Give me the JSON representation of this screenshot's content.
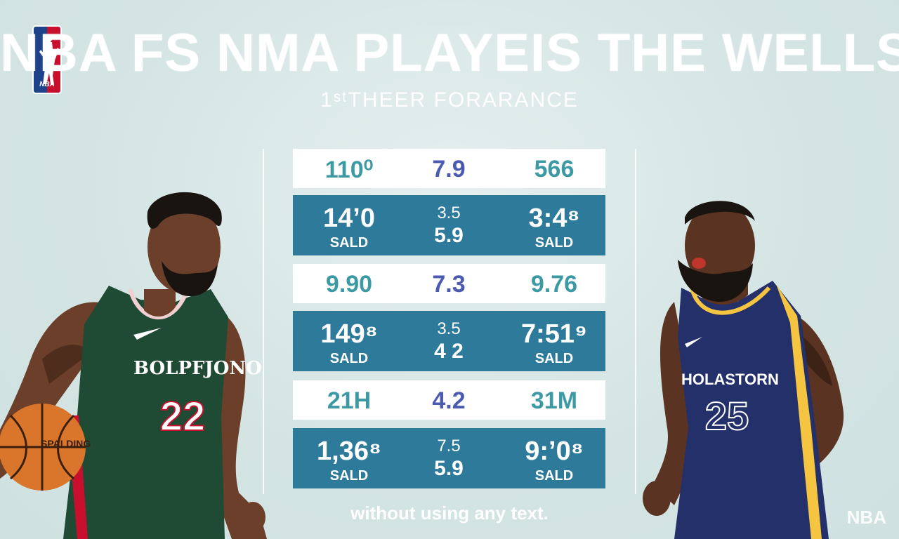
{
  "header": {
    "logo_text": "NBA",
    "title": "NBA FS NMA PLAYEIS THE WELLS",
    "subtitle": "1ˢᵗTHEER FORARANCE"
  },
  "players": {
    "left": {
      "jersey_name": "BOLPFJONO",
      "number": "22",
      "ball_text": "SPALDING"
    },
    "right": {
      "jersey_name": "HOLASTORN",
      "number": "25"
    }
  },
  "stats_rows": [
    {
      "type": "light",
      "c1": "110⁰",
      "c2": "7.9",
      "c3": "566"
    },
    {
      "type": "dark",
      "c1": "14’0",
      "c1_sub": "SALD",
      "c2_top": "3.5",
      "c2_bottom": "5.9",
      "c3": "3:4⁸",
      "c3_sub": "SALD"
    },
    {
      "type": "light",
      "c1": "9.90",
      "c2": "7.3",
      "c3": "9.76"
    },
    {
      "type": "dark",
      "c1": "149⁸",
      "c1_sub": "SALD",
      "c2_top": "3.5",
      "c2_bottom": "4 2",
      "c3": "7:51⁹",
      "c3_sub": "SALD"
    },
    {
      "type": "light",
      "c1": "21H",
      "c2": "4.2",
      "c3": "31M"
    },
    {
      "type": "dark",
      "c1": "1,36⁸",
      "c1_sub": "SALD",
      "c2_top": "7.5",
      "c2_bottom": "5.9",
      "c3": "9:’0⁸",
      "c3_sub": "SALD"
    }
  ],
  "footer_text": "without  using any text.",
  "corner_watermark": "NBA",
  "colors": {
    "background": "#d6e6e5",
    "dark_row": "#2e7a9a",
    "light_row_text": "#3d9aa5",
    "mid_text": "#4b5bb0",
    "left_jersey": "#1f4a33",
    "right_jersey": "#23306a"
  }
}
